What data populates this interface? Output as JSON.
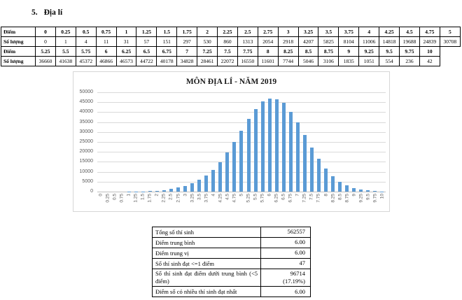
{
  "page": {
    "heading_number": "5.",
    "heading_title": "Địa lí"
  },
  "score_table": {
    "row_labels": {
      "score": "Điểm",
      "count": "Số lượng"
    },
    "part1": {
      "scores": [
        "0",
        "0.25",
        "0.5",
        "0.75",
        "1",
        "1.25",
        "1.5",
        "1.75",
        "2",
        "2.25",
        "2.5",
        "2.75",
        "3",
        "3.25",
        "3.5",
        "3.75",
        "4",
        "4.25",
        "4.5",
        "4.75",
        "5"
      ],
      "counts": [
        "0",
        "1",
        "4",
        "11",
        "31",
        "57",
        "151",
        "297",
        "530",
        "860",
        "1313",
        "2054",
        "2918",
        "4207",
        "5825",
        "8104",
        "11006",
        "14818",
        "19688",
        "24839",
        "30708"
      ]
    },
    "part2": {
      "scores": [
        "5.25",
        "5.5",
        "5.75",
        "6",
        "6.25",
        "6.5",
        "6.75",
        "7",
        "7.25",
        "7.5",
        "7.75",
        "8",
        "8.25",
        "8.5",
        "8.75",
        "9",
        "9.25",
        "9.5",
        "9.75",
        "10"
      ],
      "counts": [
        "36660",
        "41638",
        "45372",
        "46866",
        "46573",
        "44722",
        "40178",
        "34828",
        "28461",
        "22072",
        "16550",
        "11601",
        "7744",
        "5046",
        "3106",
        "1835",
        "1051",
        "554",
        "236",
        "42"
      ]
    }
  },
  "chart_data": {
    "type": "bar",
    "title": "MÔN ĐỊA LÍ - NĂM 2019",
    "categories": [
      "0",
      "0.25",
      "0.5",
      "0.75",
      "1",
      "1.25",
      "1.5",
      "1.75",
      "2",
      "2.25",
      "2.5",
      "2.75",
      "3",
      "3.25",
      "3.5",
      "3.75",
      "4",
      "4.25",
      "4.5",
      "4.75",
      "5",
      "5.25",
      "5.5",
      "5.75",
      "6",
      "6.25",
      "6.5",
      "6.75",
      "7",
      "7.25",
      "7.5",
      "7.75",
      "8",
      "8.25",
      "8.5",
      "8.75",
      "9",
      "9.25",
      "9.5",
      "9.75",
      "10"
    ],
    "values": [
      0,
      1,
      4,
      11,
      31,
      57,
      151,
      297,
      530,
      860,
      1313,
      2054,
      2918,
      4207,
      5825,
      8104,
      11006,
      14818,
      19688,
      24839,
      30708,
      36660,
      41638,
      45372,
      46866,
      46573,
      44722,
      40178,
      34828,
      28461,
      22072,
      16550,
      11601,
      7744,
      5046,
      3106,
      1835,
      1051,
      554,
      236,
      42
    ],
    "xlabel": "",
    "ylabel": "",
    "ylim": [
      0,
      50000
    ],
    "ytick_step": 5000,
    "grid": true,
    "legend": false,
    "bar_color": "#5B9BD5",
    "gridline_color": "#D9D9D9",
    "axis_line_color": "#BFBFBF",
    "label_color": "#595959"
  },
  "summary_table": {
    "rows": [
      {
        "label": "Tổng số thí sinh",
        "value": "562557"
      },
      {
        "label": "Điểm trung bình",
        "value": "6.00"
      },
      {
        "label": "Điểm trung vị",
        "value": "6.00"
      },
      {
        "label": "Số thí sinh đạt <=1 điểm",
        "value": "47"
      },
      {
        "label": "Số thí sinh đạt điểm dưới trung bình (<5 điểm)",
        "value": "96714",
        "value_line2": "(17.19%)"
      },
      {
        "label": "Điểm số có nhiều thí sinh đạt nhất",
        "value": "6.00"
      }
    ]
  }
}
